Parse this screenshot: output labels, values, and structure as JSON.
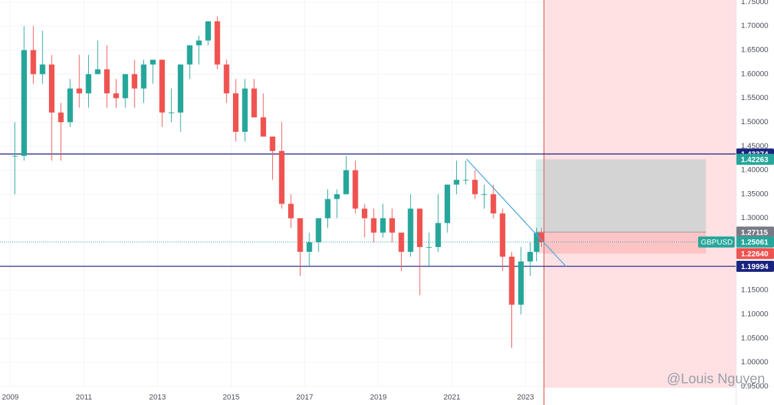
{
  "chart_data": {
    "type": "candlestick",
    "x": [
      2009.125,
      2009.375,
      2009.625,
      2009.875,
      2010.125,
      2010.375,
      2010.625,
      2010.875,
      2011.125,
      2011.375,
      2011.625,
      2011.875,
      2012.125,
      2012.375,
      2012.625,
      2012.875,
      2013.125,
      2013.375,
      2013.625,
      2013.875,
      2014.125,
      2014.375,
      2014.625,
      2014.875,
      2015.125,
      2015.375,
      2015.625,
      2015.875,
      2016.125,
      2016.375,
      2016.625,
      2016.875,
      2017.125,
      2017.375,
      2017.625,
      2017.875,
      2018.125,
      2018.375,
      2018.625,
      2018.875,
      2019.125,
      2019.375,
      2019.625,
      2019.875,
      2020.125,
      2020.375,
      2020.625,
      2020.875,
      2021.125,
      2021.375,
      2021.625,
      2021.875,
      2022.125,
      2022.375,
      2022.625,
      2022.875,
      2023.125,
      2023.3,
      2023.43
    ],
    "open": [
      1.43,
      1.43,
      1.65,
      1.6,
      1.62,
      1.52,
      1.5,
      1.57,
      1.56,
      1.6,
      1.61,
      1.56,
      1.55,
      1.6,
      1.57,
      1.62,
      1.63,
      1.52,
      1.52,
      1.62,
      1.66,
      1.67,
      1.71,
      1.62,
      1.56,
      1.48,
      1.57,
      1.51,
      1.47,
      1.44,
      1.33,
      1.3,
      1.23,
      1.25,
      1.3,
      1.34,
      1.35,
      1.4,
      1.32,
      1.3,
      1.27,
      1.3,
      1.27,
      1.23,
      1.32,
      1.24,
      1.24,
      1.29,
      1.37,
      1.38,
      1.38,
      1.35,
      1.35,
      1.31,
      1.22,
      1.12,
      1.21,
      1.23,
      1.27
    ],
    "high": [
      1.5,
      1.7,
      1.7,
      1.69,
      1.64,
      1.54,
      1.59,
      1.64,
      1.64,
      1.67,
      1.66,
      1.59,
      1.6,
      1.63,
      1.63,
      1.63,
      1.63,
      1.57,
      1.62,
      1.66,
      1.68,
      1.71,
      1.72,
      1.63,
      1.59,
      1.59,
      1.59,
      1.56,
      1.47,
      1.5,
      1.35,
      1.3,
      1.27,
      1.3,
      1.36,
      1.36,
      1.43,
      1.42,
      1.33,
      1.32,
      1.33,
      1.32,
      1.27,
      1.35,
      1.32,
      1.27,
      1.35,
      1.37,
      1.42,
      1.42,
      1.4,
      1.37,
      1.37,
      1.32,
      1.23,
      1.24,
      1.25,
      1.28,
      1.28
    ],
    "low": [
      1.35,
      1.42,
      1.58,
      1.58,
      1.42,
      1.42,
      1.49,
      1.53,
      1.53,
      1.6,
      1.53,
      1.53,
      1.53,
      1.53,
      1.54,
      1.58,
      1.49,
      1.5,
      1.48,
      1.59,
      1.62,
      1.66,
      1.61,
      1.54,
      1.46,
      1.46,
      1.51,
      1.47,
      1.38,
      1.32,
      1.28,
      1.18,
      1.2,
      1.23,
      1.28,
      1.3,
      1.35,
      1.31,
      1.26,
      1.25,
      1.26,
      1.25,
      1.19,
      1.22,
      1.14,
      1.2,
      1.23,
      1.27,
      1.35,
      1.37,
      1.34,
      1.32,
      1.3,
      1.19,
      1.03,
      1.1,
      1.18,
      1.21,
      1.24
    ],
    "close": [
      1.43,
      1.65,
      1.6,
      1.62,
      1.52,
      1.5,
      1.57,
      1.56,
      1.6,
      1.61,
      1.56,
      1.55,
      1.6,
      1.57,
      1.62,
      1.63,
      1.52,
      1.52,
      1.62,
      1.66,
      1.67,
      1.71,
      1.62,
      1.56,
      1.48,
      1.57,
      1.51,
      1.47,
      1.44,
      1.33,
      1.3,
      1.23,
      1.25,
      1.3,
      1.34,
      1.35,
      1.4,
      1.32,
      1.3,
      1.27,
      1.3,
      1.27,
      1.23,
      1.32,
      1.24,
      1.24,
      1.29,
      1.37,
      1.38,
      1.38,
      1.35,
      1.35,
      1.31,
      1.22,
      1.12,
      1.21,
      1.23,
      1.27,
      1.25
    ],
    "up_color": "#26a69a",
    "down_color": "#ef5350",
    "xlim": [
      2008.72,
      2028.72
    ],
    "ylim": [
      0.95,
      1.75
    ],
    "xticks": [
      2009,
      2011,
      2013,
      2015,
      2017,
      2019,
      2021,
      2023
    ],
    "yticks": [
      {
        "value": 0.95,
        "label": "0.95000"
      },
      {
        "value": 1.0,
        "label": "1.00000"
      },
      {
        "value": 1.05,
        "label": "1.05000"
      },
      {
        "value": 1.1,
        "label": "1.10000"
      },
      {
        "value": 1.15,
        "label": "1.15000"
      },
      {
        "value": 1.2,
        "label": "1.20000"
      },
      {
        "value": 1.25,
        "label": "1.25000"
      },
      {
        "value": 1.3,
        "label": "1.30000"
      },
      {
        "value": 1.35,
        "label": "1.35000"
      },
      {
        "value": 1.4,
        "label": "1.40000"
      },
      {
        "value": 1.45,
        "label": "1.45000"
      },
      {
        "value": 1.5,
        "label": "1.50000"
      },
      {
        "value": 1.55,
        "label": "1.55000"
      },
      {
        "value": 1.6,
        "label": "1.60000"
      },
      {
        "value": 1.65,
        "label": "1.65000"
      },
      {
        "value": 1.7,
        "label": "1.70000"
      },
      {
        "value": 1.75,
        "label": "1.75000"
      }
    ],
    "grid": true,
    "hlines": [
      {
        "value": 1.43374,
        "label": "1.43374",
        "color": "#1a237e"
      },
      {
        "value": 1.19994,
        "label": "1.19994",
        "color": "#1a237e"
      }
    ],
    "position": {
      "x_start": 2023.28,
      "x_end": 2027.9,
      "target": {
        "value": 1.42263,
        "label": "1.42263",
        "color": "#26a69a"
      },
      "entry": {
        "value": 1.27115,
        "label": "1.27115",
        "color": "#787b86"
      },
      "stop": {
        "value": 1.2264,
        "label": "1.22640",
        "color": "#ef5350"
      }
    },
    "current": {
      "name": "GBPUSD",
      "value": 1.25061,
      "label": "1.25061",
      "color": "#26a69a"
    },
    "trendline": {
      "x": [
        2021.4,
        2024.1
      ],
      "y": [
        1.423,
        1.1995
      ],
      "color": "#4ea5d9"
    },
    "vline": {
      "x": 2023.5,
      "color": "#e57373"
    },
    "watermark": "@Louis Nguyen"
  }
}
